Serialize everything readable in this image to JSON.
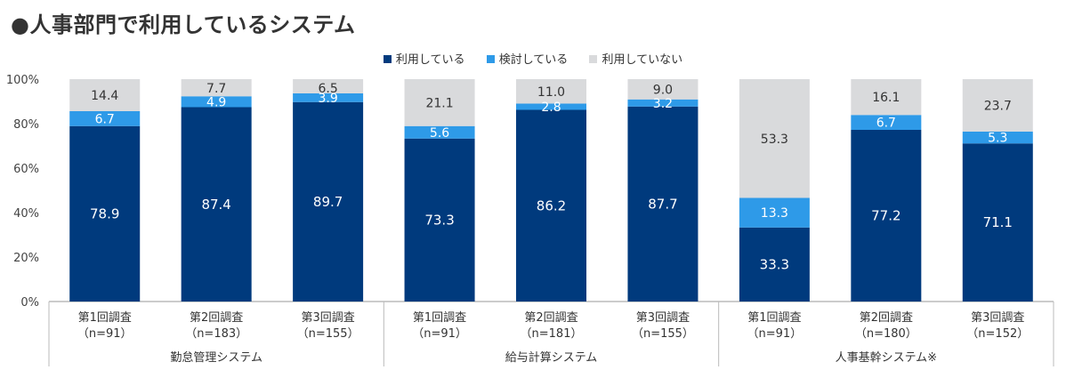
{
  "title": "●人事部門で利用しているシステム",
  "colors": {
    "using": "#003a7d",
    "considering": "#2e9ae8",
    "not_using": "#d9dadc"
  },
  "chart_data": {
    "type": "bar",
    "stacked": true,
    "ylim": [
      0,
      100
    ],
    "y_ticks": [
      "0%",
      "20%",
      "40%",
      "60%",
      "80%",
      "100%"
    ],
    "legend": [
      "利用している",
      "検討している",
      "利用していない"
    ],
    "legend_position": "top-center",
    "groups": [
      {
        "name": "勤怠管理システム",
        "bars": [
          {
            "label": "第1回調査",
            "n": "（n=91）",
            "values": [
              78.9,
              6.7,
              14.4
            ]
          },
          {
            "label": "第2回調査",
            "n": "（n=183）",
            "values": [
              87.4,
              4.9,
              7.7
            ]
          },
          {
            "label": "第3回調査",
            "n": "（n=155）",
            "values": [
              89.7,
              3.9,
              6.5
            ]
          }
        ]
      },
      {
        "name": "給与計算システム",
        "bars": [
          {
            "label": "第1回調査",
            "n": "（n=91）",
            "values": [
              73.3,
              5.6,
              21.1
            ]
          },
          {
            "label": "第2回調査",
            "n": "（n=181）",
            "values": [
              86.2,
              2.8,
              11.0
            ]
          },
          {
            "label": "第3回調査",
            "n": "（n=155）",
            "values": [
              87.7,
              3.2,
              9.0
            ]
          }
        ]
      },
      {
        "name": "人事基幹システム※",
        "bars": [
          {
            "label": "第1回調査",
            "n": "（n=91）",
            "values": [
              33.3,
              13.3,
              53.3
            ]
          },
          {
            "label": "第2回調査",
            "n": "（n=180）",
            "values": [
              77.2,
              6.7,
              16.1
            ]
          },
          {
            "label": "第3回調査",
            "n": "（n=152）",
            "values": [
              71.1,
              5.3,
              23.7
            ]
          }
        ]
      }
    ]
  }
}
